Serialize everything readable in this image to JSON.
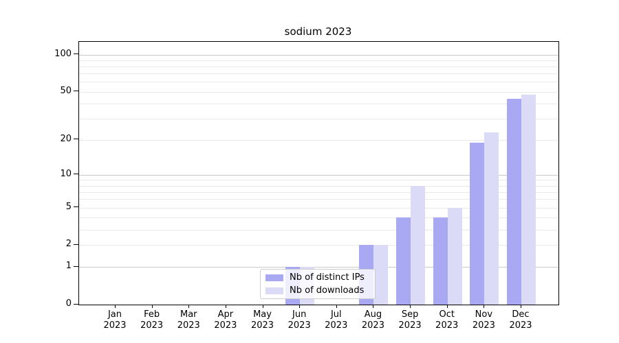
{
  "chart_data": {
    "type": "bar",
    "title": "sodium 2023",
    "categories": [
      "Jan",
      "Feb",
      "Mar",
      "Apr",
      "May",
      "Jun",
      "Jul",
      "Aug",
      "Sep",
      "Oct",
      "Nov",
      "Dec"
    ],
    "x_year_label": "2023",
    "series": [
      {
        "name": "Nb of distinct IPs",
        "color": "#a9a9f3",
        "values": [
          0,
          0,
          0,
          0,
          0,
          1,
          0,
          2,
          4,
          4,
          19,
          44
        ]
      },
      {
        "name": "Nb of downloads",
        "color": "#dbdbf8",
        "values": [
          0,
          0,
          0,
          0,
          0,
          1,
          0,
          2,
          8,
          5,
          23,
          47
        ]
      }
    ],
    "yscale": "log10(1+v)",
    "ylim": [
      0,
      128
    ],
    "yticks": [
      0,
      1,
      2,
      5,
      10,
      20,
      50,
      100
    ],
    "major_grid_values": [
      1,
      10,
      100
    ],
    "minor_grid_values": [
      2,
      3,
      4,
      5,
      6,
      7,
      8,
      9,
      20,
      30,
      40,
      50,
      60,
      70,
      80,
      90
    ],
    "grid": true,
    "legend_position": "lower-center-inside",
    "legend_labels": [
      "Nb of distinct IPs",
      "Nb of downloads"
    ]
  },
  "colors": {
    "background": "#ffffff",
    "spine": "#000000",
    "grid_major": "#c9c9c9",
    "grid_minor": "#e9e9e9",
    "bar_distinct_ips": "#a9a9f3",
    "bar_downloads": "#dbdbf8",
    "legend_border": "#cccccc"
  }
}
